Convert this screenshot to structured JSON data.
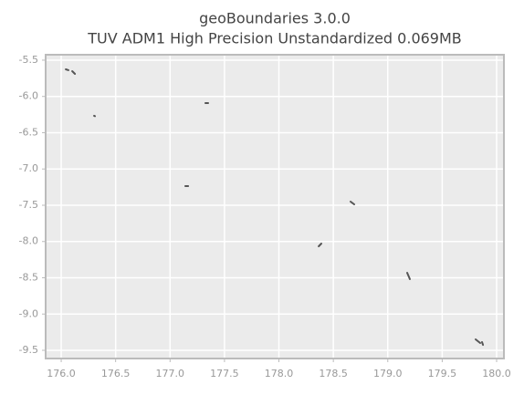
{
  "chart_data": {
    "type": "map",
    "title": "geoBoundaries 3.0.0",
    "subtitle": "TUV ADM1 High Precision Unstandardized 0.069MB",
    "xlim": [
      175.857,
      180.067
    ],
    "ylim": [
      -9.613,
      -5.425
    ],
    "xticks": [
      {
        "value": 176,
        "label": "176.0"
      },
      176.5,
      {
        "value": 177,
        "label": "177.0"
      },
      177.5,
      {
        "value": 178,
        "label": "178.0"
      },
      178.5,
      {
        "value": 179,
        "label": "179.0"
      },
      179.5,
      {
        "value": 180,
        "label": "180.0"
      }
    ],
    "yticks": [
      -5.5,
      {
        "value": -6,
        "label": "-6.0"
      },
      -6.5,
      {
        "value": -7,
        "label": "-7.0"
      },
      -7.5,
      {
        "value": -8,
        "label": "-8.0"
      },
      -8.5,
      {
        "value": -9,
        "label": "-9.0"
      },
      -9.5
    ],
    "grid": true,
    "color": "#555555",
    "features": [
      {
        "x": [
          176.042,
          176.067
        ],
        "y": [
          -5.626,
          -5.638
        ]
      },
      {
        "x": [
          176.101,
          176.126
        ],
        "y": [
          -5.651,
          -5.689
        ]
      },
      {
        "x": [
          176.302,
          176.31
        ],
        "y": [
          -6.267,
          -6.272
        ]
      },
      {
        "x": [
          177.325,
          177.35
        ],
        "y": [
          -6.091,
          -6.091
        ]
      },
      {
        "x": [
          177.14,
          177.166
        ],
        "y": [
          -7.236,
          -7.236
        ]
      },
      {
        "x": [
          178.658,
          178.692
        ],
        "y": [
          -7.45,
          -7.487
        ]
      },
      {
        "x": [
          178.365,
          178.39
        ],
        "y": [
          -8.066,
          -8.028
        ]
      },
      {
        "x": [
          179.178,
          179.203
        ],
        "y": [
          -8.431,
          -8.519
        ]
      },
      {
        "x": [
          179.807,
          179.849
        ],
        "y": [
          -9.349,
          -9.399
        ]
      },
      {
        "x": [
          179.866,
          179.875
        ],
        "y": [
          -9.387,
          -9.425
        ]
      }
    ]
  }
}
